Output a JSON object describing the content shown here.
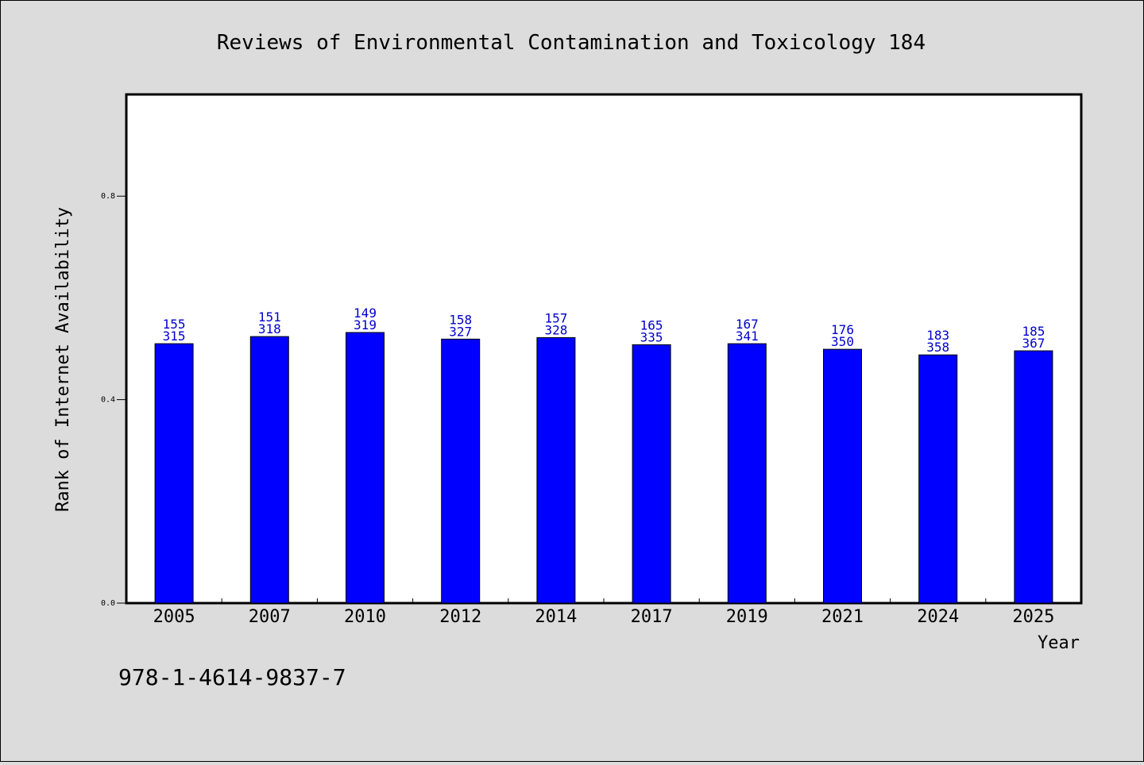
{
  "chart_data": {
    "type": "bar",
    "title": "Reviews of Environmental Contamination and Toxicology 184",
    "xlabel": "Year",
    "ylabel": "Rank of Internet Availability",
    "categories": [
      "2005",
      "2007",
      "2010",
      "2012",
      "2014",
      "2017",
      "2019",
      "2021",
      "2024",
      "2025"
    ],
    "values": [
      0.51,
      0.524,
      0.532,
      0.519,
      0.522,
      0.508,
      0.51,
      0.499,
      0.488,
      0.496
    ],
    "labels_top": [
      "155",
      "151",
      "149",
      "158",
      "157",
      "165",
      "167",
      "176",
      "183",
      "185"
    ],
    "labels_bottom": [
      "315",
      "318",
      "319",
      "327",
      "328",
      "335",
      "341",
      "350",
      "358",
      "367"
    ],
    "ylim": [
      0,
      1.0
    ],
    "yticks": [
      0.0,
      0.4,
      0.8
    ],
    "ytick_labels": [
      "0.0",
      "0.4",
      "0.8"
    ],
    "grid": false,
    "bar_color": "#0000ff",
    "label_color": "#0000cc",
    "background": "#dcdcdc",
    "plot_background": "#ffffff"
  },
  "footer": {
    "isbn": "978-1-4614-9837-7"
  }
}
